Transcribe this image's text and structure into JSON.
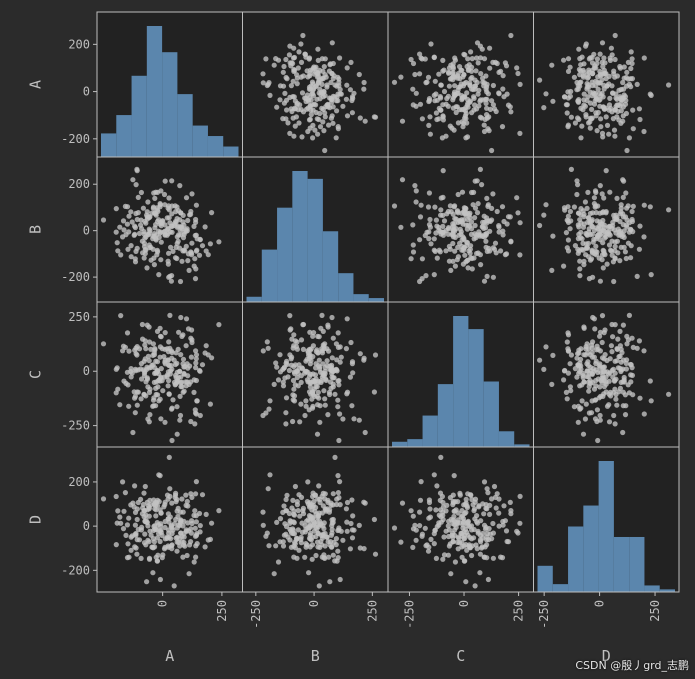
{
  "watermark": "CSDN @殷丿grd_志鹏",
  "colors": {
    "background": "#2b2b2b",
    "plot_bg": "#222222",
    "frame": "#bdbdbd",
    "hist_fill": "#5b86ad",
    "point": "#c2c2c2",
    "text": "#bfbfbf"
  },
  "chart_data": {
    "type": "scatter_matrix",
    "variables": [
      "A",
      "B",
      "C",
      "D"
    ],
    "ranges": {
      "A": [
        -260,
        320
      ],
      "B": [
        -290,
        300
      ],
      "C": [
        -330,
        300
      ],
      "D": [
        -280,
        340
      ]
    },
    "y_ticks": {
      "A": [
        "200",
        "0",
        "-200"
      ],
      "B": [
        "200",
        "0",
        "-200"
      ],
      "C": [
        "250",
        "0",
        "-250"
      ],
      "D": [
        "200",
        "0",
        "-200"
      ]
    },
    "y_tick_values": {
      "A": [
        200,
        0,
        -200
      ],
      "B": [
        200,
        0,
        -200
      ],
      "C": [
        250,
        0,
        -250
      ],
      "D": [
        200,
        0,
        -200
      ]
    },
    "x_ticks": {
      "A": [
        "0",
        "250"
      ],
      "B": [
        "-250",
        "0",
        "250"
      ],
      "C": [
        "-250",
        "0",
        "250"
      ],
      "D": [
        "-250",
        "0",
        "250"
      ]
    },
    "x_tick_values": {
      "A": [
        0,
        250
      ],
      "B": [
        -250,
        0,
        250
      ],
      "C": [
        -250,
        0,
        250
      ],
      "D": [
        -250,
        0,
        250
      ]
    },
    "histograms": {
      "A": [
        0.18,
        0.32,
        0.62,
        1.0,
        0.8,
        0.48,
        0.24,
        0.16,
        0.08
      ],
      "B": [
        0.04,
        0.4,
        0.72,
        1.0,
        0.94,
        0.54,
        0.22,
        0.06,
        0.03
      ],
      "C": [
        0.04,
        0.06,
        0.24,
        0.48,
        1.0,
        0.9,
        0.5,
        0.12,
        0.02
      ],
      "D": [
        0.2,
        0.06,
        0.5,
        0.66,
        1.0,
        0.42,
        0.42,
        0.05,
        0.02
      ]
    },
    "point_count": 240,
    "std": {
      "A": 95,
      "B": 95,
      "C": 110,
      "D": 95
    },
    "grid": false
  }
}
